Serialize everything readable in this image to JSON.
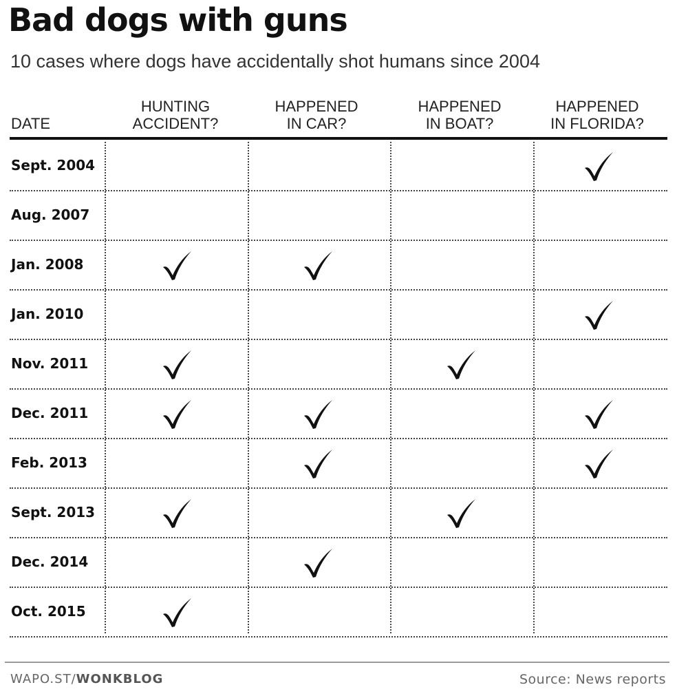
{
  "chart_data": {
    "type": "table",
    "title": "Bad dogs with guns",
    "subtitle": "10 cases where dogs have accidentally shot humans since 2004",
    "columns": [
      {
        "key": "date",
        "label_lines": [
          "DATE"
        ]
      },
      {
        "key": "hunting",
        "label_lines": [
          "HUNTING",
          "ACCIDENT?"
        ]
      },
      {
        "key": "car",
        "label_lines": [
          "HAPPENED",
          "IN CAR?"
        ]
      },
      {
        "key": "boat",
        "label_lines": [
          "HAPPENED",
          "IN BOAT?"
        ]
      },
      {
        "key": "florida",
        "label_lines": [
          "HAPPENED",
          "IN FLORIDA?"
        ]
      }
    ],
    "rows": [
      {
        "date": "Sept. 2004",
        "hunting": false,
        "car": false,
        "boat": false,
        "florida": true
      },
      {
        "date": "Aug. 2007",
        "hunting": false,
        "car": false,
        "boat": false,
        "florida": false
      },
      {
        "date": "Jan. 2008",
        "hunting": true,
        "car": true,
        "boat": false,
        "florida": false
      },
      {
        "date": "Jan. 2010",
        "hunting": false,
        "car": false,
        "boat": false,
        "florida": true
      },
      {
        "date": "Nov. 2011",
        "hunting": true,
        "car": false,
        "boat": true,
        "florida": false
      },
      {
        "date": "Dec. 2011",
        "hunting": true,
        "car": true,
        "boat": false,
        "florida": true
      },
      {
        "date": "Feb. 2013",
        "hunting": false,
        "car": true,
        "boat": false,
        "florida": true
      },
      {
        "date": "Sept. 2013",
        "hunting": true,
        "car": false,
        "boat": true,
        "florida": false
      },
      {
        "date": "Dec. 2014",
        "hunting": false,
        "car": true,
        "boat": false,
        "florida": false
      },
      {
        "date": "Oct. 2015",
        "hunting": true,
        "car": false,
        "boat": false,
        "florida": false
      }
    ]
  },
  "footer": {
    "credit_prefix": "WAPO.ST/",
    "credit_bold": "WONKBLOG",
    "source": "Source: News reports"
  },
  "icons": {
    "check": "check-mark-icon"
  }
}
